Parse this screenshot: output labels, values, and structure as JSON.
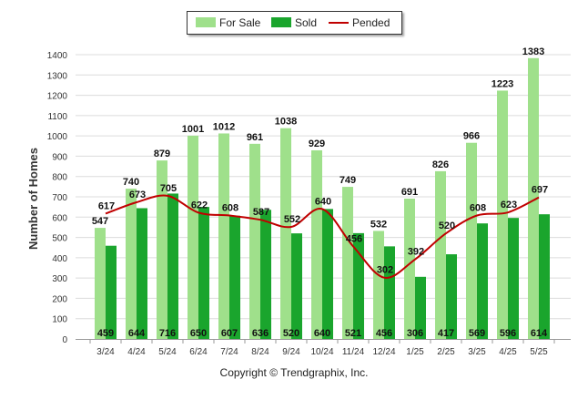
{
  "chart_data": {
    "type": "bar",
    "categories": [
      "3/24",
      "4/24",
      "5/24",
      "6/24",
      "7/24",
      "8/24",
      "9/24",
      "10/24",
      "11/24",
      "12/24",
      "1/25",
      "2/25",
      "3/25",
      "4/25",
      "5/25"
    ],
    "series": [
      {
        "name": "For Sale",
        "type": "bar",
        "color": "#9fe08b",
        "values": [
          547,
          740,
          879,
          1001,
          1012,
          961,
          1038,
          929,
          749,
          532,
          691,
          826,
          966,
          1223,
          1383
        ]
      },
      {
        "name": "Sold",
        "type": "bar",
        "color": "#1aa52d",
        "values": [
          459,
          644,
          716,
          650,
          607,
          636,
          520,
          640,
          521,
          456,
          306,
          417,
          569,
          596,
          614
        ]
      },
      {
        "name": "Pended",
        "type": "line",
        "color": "#c00000",
        "values": [
          617,
          673,
          705,
          622,
          608,
          587,
          552,
          640,
          456,
          302,
          392,
          520,
          608,
          623,
          697
        ]
      }
    ],
    "ylabel": "Number of Homes",
    "xlabel": "",
    "ylim": [
      0,
      1400
    ],
    "yticks": [
      0,
      100,
      200,
      300,
      400,
      500,
      600,
      700,
      800,
      900,
      1000,
      1100,
      1200,
      1300,
      1400
    ],
    "grid": true,
    "legend_position": "top-center"
  },
  "legend": {
    "for_sale": "For Sale",
    "sold": "Sold",
    "pended": "Pended",
    "for_sale_color": "#9fe08b",
    "sold_color": "#1aa52d",
    "pended_color": "#c00000"
  },
  "credit": "Copyright © Trendgraphix, Inc."
}
